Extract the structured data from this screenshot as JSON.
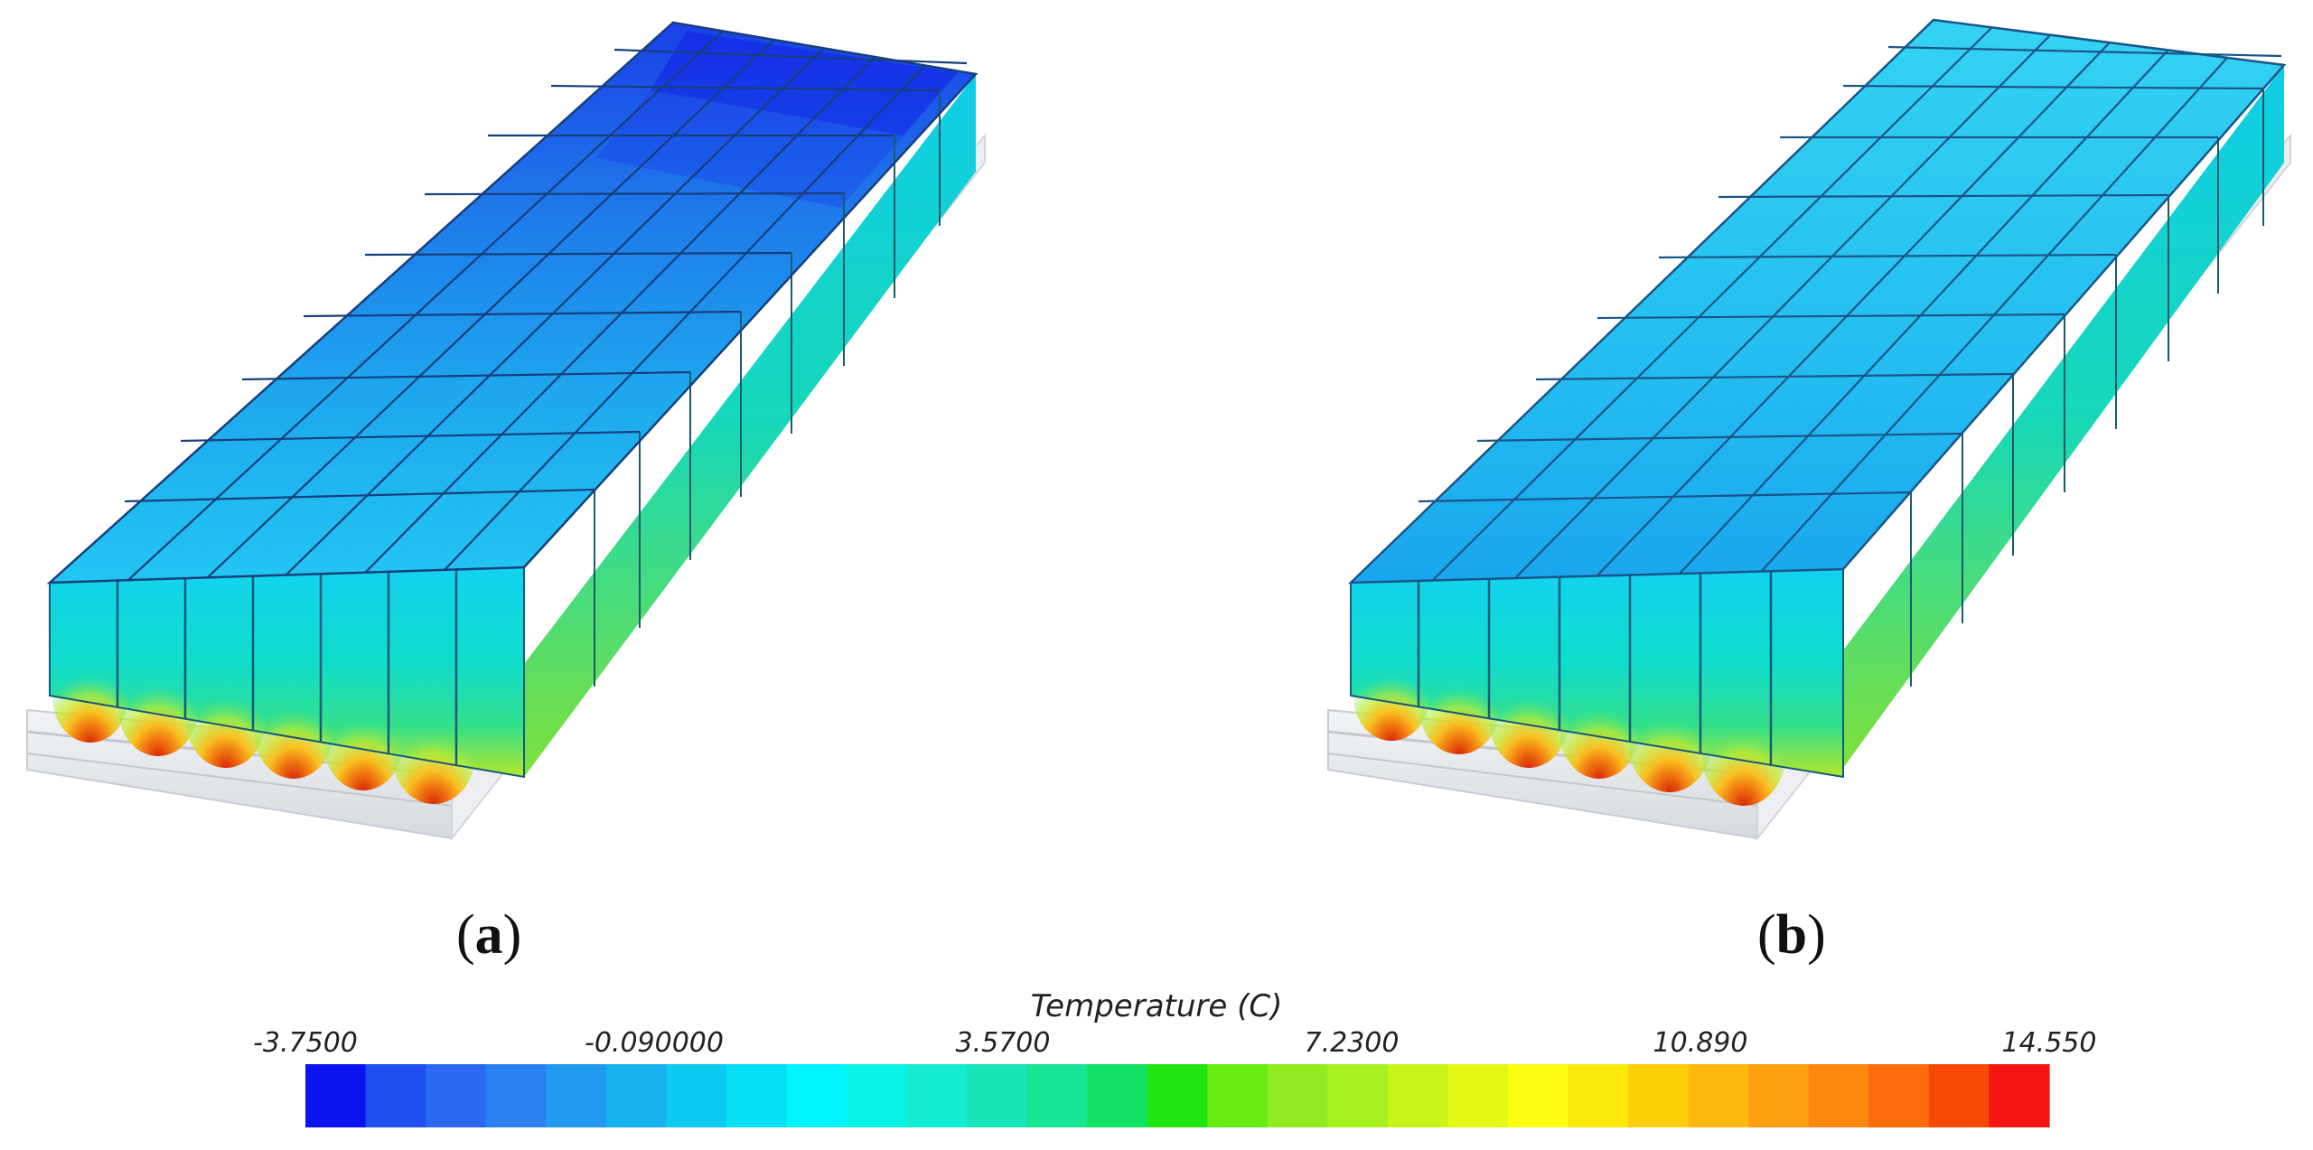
{
  "panels": [
    {
      "label": "a",
      "id": "a"
    },
    {
      "label": "b",
      "id": "b"
    }
  ],
  "colorbar": {
    "title": "Temperature (C)",
    "min": -3.75,
    "max": 14.55,
    "tick_labels": [
      "-3.7500",
      "-0.090000",
      "3.5700",
      "7.2300",
      "10.890",
      "14.550"
    ],
    "colors": [
      "#0a14ee",
      "#1e50f0",
      "#2a68ef",
      "#2a80f0",
      "#209aee",
      "#18b2ee",
      "#0ccaf0",
      "#06e0f6",
      "#00f4fc",
      "#08f2e6",
      "#14ecd2",
      "#18e6b8",
      "#18e496",
      "#14e264",
      "#20e410",
      "#68ec10",
      "#90ec20",
      "#a8f020",
      "#c8f418",
      "#e4f816",
      "#fcfc10",
      "#fce808",
      "#fcd008",
      "#fcb80c",
      "#fca010",
      "#fc8810",
      "#fc6c0c",
      "#f84808",
      "#f41410"
    ]
  },
  "fills": {
    "top_a_far": "#1a30e8",
    "top_a_near": "#1ab8f0",
    "top_b_far": "#30d0f2",
    "top_b_near": "#1aaef0",
    "side_top": "#0ee8f2",
    "side_mid": "#10e0c4",
    "side_low": "#50e070",
    "side_base": "#b0e830",
    "hot_core": "#e04010",
    "hot_ring": "#f8b020",
    "frame": "#e4e6ea",
    "cell_line": "#143a70"
  }
}
